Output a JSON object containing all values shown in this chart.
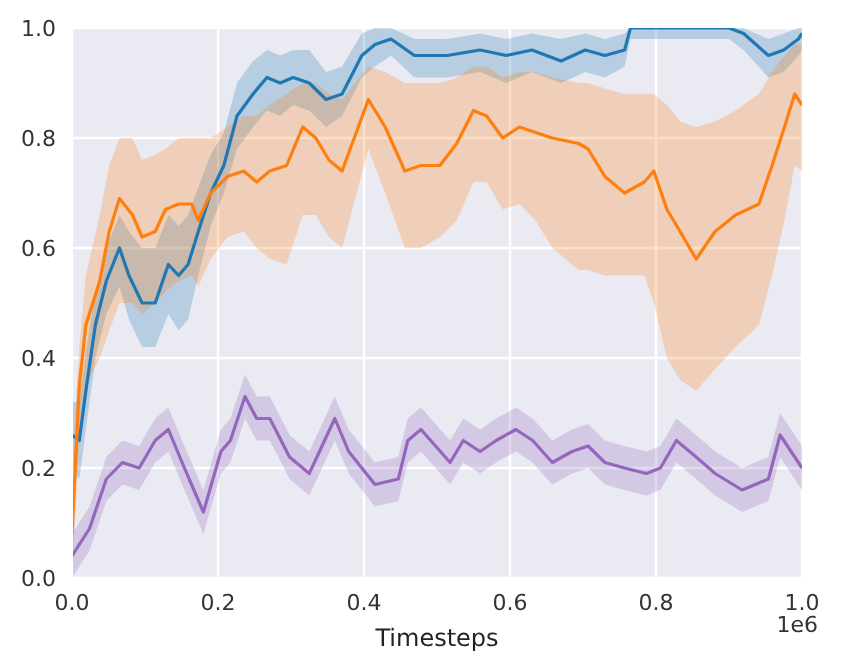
{
  "chart_data": {
    "type": "line",
    "xlabel": "Timesteps",
    "annotations": [
      "1e6"
    ],
    "grid": true,
    "line_style": "solid",
    "xlim": [
      0,
      1
    ],
    "xticks": [
      {
        "value": 0,
        "label": "0.0"
      },
      {
        "value": 0.2,
        "label": "0.2"
      },
      {
        "value": 0.4,
        "label": "0.4"
      },
      {
        "value": 0.6,
        "label": "0.6"
      },
      {
        "value": 0.8,
        "label": "0.8"
      },
      {
        "value": 1,
        "label": "1.0"
      }
    ],
    "ylim": [
      0,
      1
    ],
    "yticks": [
      {
        "value": 0,
        "label": "0.0"
      },
      {
        "value": 0.2,
        "label": "0.2"
      },
      {
        "value": 0.4,
        "label": "0.4"
      },
      {
        "value": 0.6,
        "label": "0.6"
      },
      {
        "value": 0.8,
        "label": "0.8"
      },
      {
        "value": 1,
        "label": "1.0"
      }
    ],
    "series": [
      {
        "color": "#1f77b4",
        "x": [
          0,
          0.01,
          0.02,
          0.032,
          0.047,
          0.065,
          0.078,
          0.096,
          0.114,
          0.132,
          0.146,
          0.159,
          0.173,
          0.19,
          0.208,
          0.226,
          0.248,
          0.267,
          0.285,
          0.303,
          0.325,
          0.348,
          0.37,
          0.397,
          0.415,
          0.437,
          0.469,
          0.49,
          0.514,
          0.559,
          0.595,
          0.63,
          0.67,
          0.703,
          0.73,
          0.757,
          0.765,
          0.8,
          0.85,
          0.9,
          0.92,
          0.954,
          0.975,
          0.995,
          1.0
        ],
        "values": [
          0.26,
          0.25,
          0.35,
          0.46,
          0.54,
          0.6,
          0.55,
          0.5,
          0.5,
          0.57,
          0.55,
          0.57,
          0.63,
          0.7,
          0.75,
          0.84,
          0.88,
          0.91,
          0.9,
          0.91,
          0.9,
          0.87,
          0.88,
          0.95,
          0.97,
          0.98,
          0.95,
          0.95,
          0.95,
          0.96,
          0.95,
          0.96,
          0.94,
          0.96,
          0.95,
          0.96,
          1.0,
          1.0,
          1.0,
          1.0,
          0.99,
          0.95,
          0.96,
          0.98,
          0.99
        ],
        "lower": [
          0.2,
          0.18,
          0.28,
          0.4,
          0.48,
          0.53,
          0.47,
          0.42,
          0.42,
          0.48,
          0.45,
          0.47,
          0.55,
          0.64,
          0.7,
          0.78,
          0.82,
          0.85,
          0.84,
          0.86,
          0.85,
          0.82,
          0.84,
          0.91,
          0.93,
          0.95,
          0.91,
          0.91,
          0.91,
          0.92,
          0.9,
          0.92,
          0.9,
          0.92,
          0.91,
          0.93,
          0.98,
          0.98,
          0.98,
          0.98,
          0.96,
          0.91,
          0.92,
          0.95,
          0.96
        ],
        "upper": [
          0.32,
          0.32,
          0.42,
          0.52,
          0.6,
          0.66,
          0.63,
          0.6,
          0.6,
          0.66,
          0.64,
          0.66,
          0.71,
          0.77,
          0.81,
          0.9,
          0.94,
          0.96,
          0.95,
          0.96,
          0.96,
          0.92,
          0.93,
          0.99,
          1.0,
          1.0,
          0.98,
          0.98,
          0.98,
          0.99,
          0.98,
          0.99,
          0.98,
          0.99,
          0.98,
          0.99,
          1.0,
          1.0,
          1.0,
          1.0,
          1.0,
          0.98,
          0.99,
          1.0,
          1.0
        ]
      },
      {
        "color": "#ff7f0e",
        "x": [
          0,
          0.01,
          0.019,
          0.038,
          0.051,
          0.065,
          0.083,
          0.096,
          0.114,
          0.128,
          0.146,
          0.164,
          0.173,
          0.19,
          0.213,
          0.235,
          0.253,
          0.271,
          0.294,
          0.316,
          0.334,
          0.352,
          0.37,
          0.406,
          0.429,
          0.456,
          0.478,
          0.504,
          0.527,
          0.55,
          0.568,
          0.59,
          0.613,
          0.635,
          0.658,
          0.694,
          0.707,
          0.73,
          0.757,
          0.784,
          0.797,
          0.815,
          0.833,
          0.855,
          0.881,
          0.909,
          0.941,
          0.959,
          0.976,
          0.99,
          1.0
        ],
        "values": [
          0.08,
          0.35,
          0.46,
          0.54,
          0.63,
          0.69,
          0.66,
          0.62,
          0.63,
          0.67,
          0.68,
          0.68,
          0.65,
          0.7,
          0.73,
          0.74,
          0.72,
          0.74,
          0.75,
          0.82,
          0.8,
          0.76,
          0.74,
          0.87,
          0.82,
          0.74,
          0.75,
          0.75,
          0.79,
          0.85,
          0.84,
          0.8,
          0.82,
          0.81,
          0.8,
          0.79,
          0.78,
          0.73,
          0.7,
          0.72,
          0.74,
          0.67,
          0.63,
          0.58,
          0.63,
          0.66,
          0.68,
          0.75,
          0.82,
          0.88,
          0.86
        ],
        "lower": [
          0.0,
          0.25,
          0.35,
          0.4,
          0.45,
          0.5,
          0.5,
          0.48,
          0.5,
          0.52,
          0.54,
          0.55,
          0.53,
          0.58,
          0.62,
          0.63,
          0.6,
          0.58,
          0.57,
          0.66,
          0.66,
          0.62,
          0.6,
          0.78,
          0.7,
          0.6,
          0.6,
          0.62,
          0.65,
          0.72,
          0.72,
          0.67,
          0.68,
          0.65,
          0.6,
          0.56,
          0.56,
          0.55,
          0.55,
          0.55,
          0.5,
          0.4,
          0.36,
          0.34,
          0.38,
          0.42,
          0.46,
          0.55,
          0.65,
          0.75,
          0.74
        ],
        "upper": [
          0.2,
          0.42,
          0.55,
          0.66,
          0.75,
          0.8,
          0.8,
          0.76,
          0.77,
          0.78,
          0.8,
          0.8,
          0.8,
          0.8,
          0.82,
          0.84,
          0.84,
          0.86,
          0.88,
          0.9,
          0.9,
          0.88,
          0.87,
          0.93,
          0.92,
          0.9,
          0.9,
          0.9,
          0.91,
          0.93,
          0.93,
          0.91,
          0.92,
          0.92,
          0.91,
          0.9,
          0.9,
          0.89,
          0.88,
          0.88,
          0.88,
          0.86,
          0.83,
          0.82,
          0.83,
          0.85,
          0.88,
          0.92,
          0.95,
          0.97,
          0.97
        ]
      },
      {
        "color": "#9467bd",
        "x": [
          0,
          0.024,
          0.047,
          0.069,
          0.092,
          0.114,
          0.132,
          0.154,
          0.167,
          0.18,
          0.204,
          0.217,
          0.237,
          0.253,
          0.271,
          0.298,
          0.325,
          0.36,
          0.379,
          0.415,
          0.447,
          0.46,
          0.478,
          0.518,
          0.536,
          0.559,
          0.581,
          0.608,
          0.631,
          0.658,
          0.685,
          0.707,
          0.73,
          0.757,
          0.787,
          0.806,
          0.828,
          0.855,
          0.881,
          0.918,
          0.936,
          0.954,
          0.97,
          0.995,
          1.0
        ],
        "values": [
          0.04,
          0.09,
          0.18,
          0.21,
          0.2,
          0.25,
          0.27,
          0.2,
          0.16,
          0.12,
          0.23,
          0.25,
          0.33,
          0.29,
          0.29,
          0.22,
          0.19,
          0.29,
          0.23,
          0.17,
          0.18,
          0.25,
          0.27,
          0.21,
          0.25,
          0.23,
          0.25,
          0.27,
          0.25,
          0.21,
          0.23,
          0.24,
          0.21,
          0.2,
          0.19,
          0.2,
          0.25,
          0.22,
          0.19,
          0.16,
          0.17,
          0.18,
          0.26,
          0.21,
          0.2
        ],
        "lower": [
          0.0,
          0.05,
          0.14,
          0.17,
          0.16,
          0.21,
          0.23,
          0.16,
          0.12,
          0.08,
          0.19,
          0.21,
          0.29,
          0.25,
          0.25,
          0.18,
          0.15,
          0.25,
          0.19,
          0.13,
          0.14,
          0.21,
          0.23,
          0.17,
          0.21,
          0.19,
          0.21,
          0.23,
          0.21,
          0.17,
          0.19,
          0.2,
          0.17,
          0.16,
          0.15,
          0.16,
          0.21,
          0.18,
          0.15,
          0.12,
          0.13,
          0.14,
          0.22,
          0.17,
          0.16
        ],
        "upper": [
          0.08,
          0.13,
          0.22,
          0.25,
          0.24,
          0.29,
          0.31,
          0.24,
          0.2,
          0.16,
          0.27,
          0.29,
          0.37,
          0.33,
          0.33,
          0.26,
          0.23,
          0.33,
          0.27,
          0.21,
          0.22,
          0.29,
          0.31,
          0.25,
          0.29,
          0.27,
          0.29,
          0.31,
          0.29,
          0.25,
          0.27,
          0.28,
          0.25,
          0.24,
          0.23,
          0.24,
          0.29,
          0.26,
          0.23,
          0.2,
          0.21,
          0.22,
          0.3,
          0.25,
          0.24
        ]
      }
    ]
  }
}
